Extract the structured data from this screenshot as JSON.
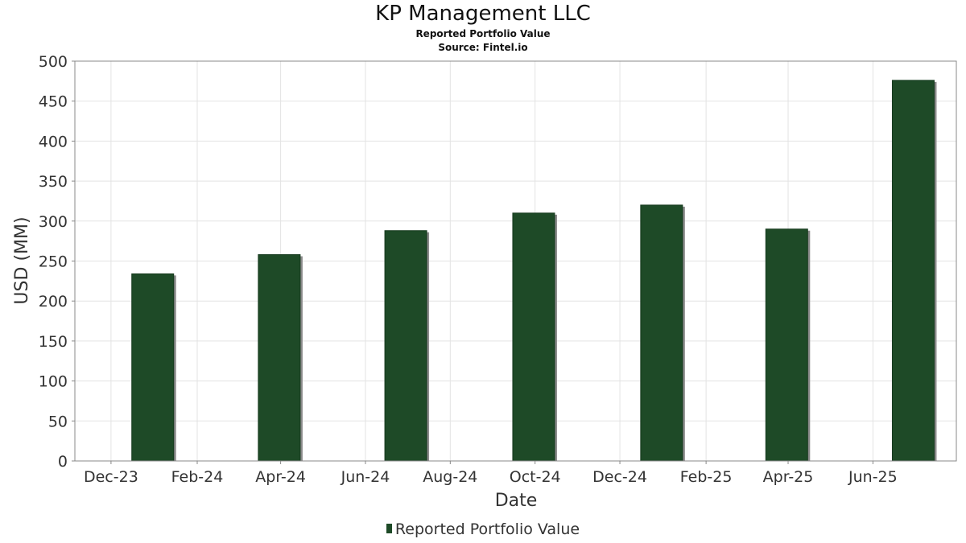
{
  "header": {
    "title": "KP Management LLC",
    "subtitle": "Reported Portfolio Value",
    "source": "Source: Fintel.io"
  },
  "legend": {
    "label": "Reported Portfolio Value"
  },
  "colors": {
    "bar": "#1e4a27",
    "bar_shadow": "#8a8a8a",
    "grid": "#e3e3e3",
    "axis": "#888888"
  },
  "chart_data": {
    "type": "bar",
    "title": "KP Management LLC",
    "subtitle": "Reported Portfolio Value",
    "xlabel": "Date",
    "ylabel": "USD (MM)",
    "ylim": [
      0,
      500
    ],
    "yticks": [
      0,
      50,
      100,
      150,
      200,
      250,
      300,
      350,
      400,
      450,
      500
    ],
    "xlim": [
      "2023-11-05",
      "2025-07-31"
    ],
    "xticks": [
      {
        "label": "Dec-23",
        "date": "2023-12-01"
      },
      {
        "label": "Feb-24",
        "date": "2024-02-01"
      },
      {
        "label": "Apr-24",
        "date": "2024-04-01"
      },
      {
        "label": "Jun-24",
        "date": "2024-06-01"
      },
      {
        "label": "Aug-24",
        "date": "2024-08-01"
      },
      {
        "label": "Oct-24",
        "date": "2024-10-01"
      },
      {
        "label": "Dec-24",
        "date": "2024-12-01"
      },
      {
        "label": "Feb-25",
        "date": "2025-02-01"
      },
      {
        "label": "Apr-25",
        "date": "2025-04-01"
      },
      {
        "label": "Jun-25",
        "date": "2025-06-01"
      }
    ],
    "grid": true,
    "legend_position": "bottom-center",
    "series": [
      {
        "name": "Reported Portfolio Value",
        "points": [
          {
            "date": "2023-12-31",
            "value": 234
          },
          {
            "date": "2024-03-31",
            "value": 258
          },
          {
            "date": "2024-06-30",
            "value": 288
          },
          {
            "date": "2024-09-30",
            "value": 310
          },
          {
            "date": "2024-12-31",
            "value": 320
          },
          {
            "date": "2025-03-31",
            "value": 290
          },
          {
            "date": "2025-06-30",
            "value": 476
          }
        ]
      }
    ]
  }
}
